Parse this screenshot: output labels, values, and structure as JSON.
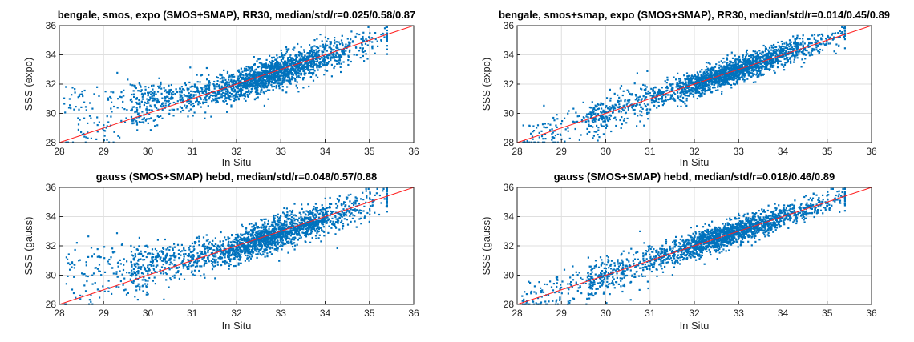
{
  "figure_title": "",
  "chart_data": [
    {
      "type": "scatter",
      "title": "bengale, smos, expo (SMOS+SMAP), RR30, median/std/r=0.025/0.58/0.87",
      "xlabel": "In Situ",
      "ylabel": "SSS (expo)",
      "xlim": [
        28,
        36
      ],
      "ylim": [
        28,
        36
      ],
      "xticks": [
        28,
        29,
        30,
        31,
        32,
        33,
        34,
        35,
        36
      ],
      "yticks": [
        28,
        30,
        32,
        34,
        36
      ],
      "grid": true,
      "reference_line": {
        "x": [
          28,
          36
        ],
        "y": [
          28,
          36
        ],
        "color": "#ff2020"
      },
      "point_color": "#0072bd",
      "stats": {
        "median": 0.025,
        "std": 0.58,
        "r": 0.87
      },
      "point_count": 2200,
      "points": []
    },
    {
      "type": "scatter",
      "title": "bengale, smos+smap, expo (SMOS+SMAP), RR30, median/std/r=0.014/0.45/0.89",
      "xlabel": "In Situ",
      "ylabel": "SSS (expo)",
      "xlim": [
        28,
        36
      ],
      "ylim": [
        28,
        36
      ],
      "xticks": [
        28,
        29,
        30,
        31,
        32,
        33,
        34,
        35,
        36
      ],
      "yticks": [
        28,
        30,
        32,
        34,
        36
      ],
      "grid": true,
      "reference_line": {
        "x": [
          28,
          36
        ],
        "y": [
          28,
          36
        ],
        "color": "#ff2020"
      },
      "point_color": "#0072bd",
      "stats": {
        "median": 0.014,
        "std": 0.45,
        "r": 0.89
      },
      "point_count": 2200,
      "points": []
    },
    {
      "type": "scatter",
      "title": "gauss (SMOS+SMAP) hebd, median/std/r=0.048/0.57/0.88",
      "xlabel": "In Situ",
      "ylabel": "SSS (gauss)",
      "xlim": [
        28,
        36
      ],
      "ylim": [
        28,
        36
      ],
      "xticks": [
        28,
        29,
        30,
        31,
        32,
        33,
        34,
        35,
        36
      ],
      "yticks": [
        28,
        30,
        32,
        34,
        36
      ],
      "grid": true,
      "reference_line": {
        "x": [
          28,
          36
        ],
        "y": [
          28,
          36
        ],
        "color": "#ff2020"
      },
      "point_color": "#0072bd",
      "stats": {
        "median": 0.048,
        "std": 0.57,
        "r": 0.88
      },
      "point_count": 2200,
      "points": []
    },
    {
      "type": "scatter",
      "title": "gauss (SMOS+SMAP) hebd, median/std/r=0.018/0.46/0.89",
      "xlabel": "In Situ",
      "ylabel": "SSS (gauss)",
      "xlim": [
        28,
        36
      ],
      "ylim": [
        28,
        36
      ],
      "xticks": [
        28,
        29,
        30,
        31,
        32,
        33,
        34,
        35,
        36
      ],
      "yticks": [
        28,
        30,
        32,
        34,
        36
      ],
      "grid": true,
      "reference_line": {
        "x": [
          28,
          36
        ],
        "y": [
          28,
          36
        ],
        "color": "#ff2020"
      },
      "point_color": "#0072bd",
      "stats": {
        "median": 0.018,
        "std": 0.46,
        "r": 0.89
      },
      "point_count": 2200,
      "points": []
    }
  ]
}
